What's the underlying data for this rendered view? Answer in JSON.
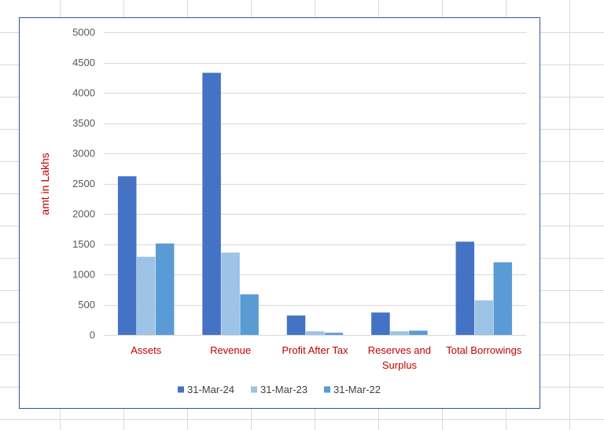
{
  "colors": {
    "sheet_gridline": "#d9d9d9",
    "chart_border": "#2f5597",
    "plot_gridline": "#d9d9d9",
    "category_label": "#c00000",
    "axis_title": "#c00000"
  },
  "chart_data": {
    "type": "bar",
    "title": "",
    "xlabel": "",
    "ylabel": "amt in Lakhs",
    "ylim": [
      0,
      5000
    ],
    "yticks": [
      0,
      500,
      1000,
      1500,
      2000,
      2500,
      3000,
      3500,
      4000,
      4500,
      5000
    ],
    "grid": true,
    "legend_position": "bottom",
    "categories": [
      [
        "Assets"
      ],
      [
        "Revenue"
      ],
      [
        "Profit After Tax"
      ],
      [
        "Reserves and",
        "Surplus"
      ],
      [
        "Total Borrowings"
      ]
    ],
    "series": [
      {
        "name": "31-Mar-24",
        "color": "#4472c4",
        "values": [
          2620,
          4330,
          320,
          370,
          1540
        ]
      },
      {
        "name": "31-Mar-23",
        "color": "#9dc3e6",
        "values": [
          1290,
          1360,
          60,
          60,
          570
        ]
      },
      {
        "name": "31-Mar-22",
        "color": "#5b9bd5",
        "values": [
          1510,
          670,
          35,
          70,
          1200
        ]
      }
    ]
  }
}
